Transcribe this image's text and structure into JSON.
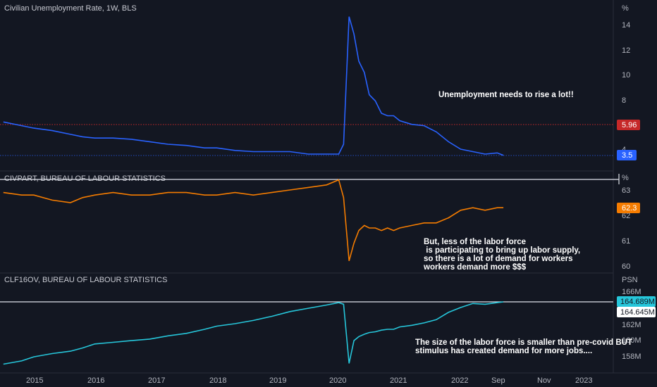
{
  "colors": {
    "background": "#131722",
    "unemployment_line": "#2962ff",
    "civpart_line": "#f57c00",
    "clf_line": "#26c6da",
    "dotted_level": "#c62828",
    "white_level": "#e0e3eb",
    "grid_text": "#b2b5be"
  },
  "chart_data": [
    {
      "type": "line",
      "title": "Civilian Unemployment Rate, 1W, BLS",
      "unit_label": "%",
      "y_ticks": [
        "14",
        "12",
        "10",
        "8",
        "4"
      ],
      "ylim": [
        3,
        15
      ],
      "series": [
        {
          "values_note": "",
          "x": [
            2014.5,
            2014.8,
            2015.0,
            2015.3,
            2015.6,
            2015.8,
            2016.0,
            2016.3,
            2016.6,
            2016.9,
            2017.2,
            2017.5,
            2017.8,
            2018.0,
            2018.3,
            2018.6,
            2018.9,
            2019.2,
            2019.5,
            2019.8,
            2020.0,
            2020.08,
            2020.17,
            2020.25,
            2020.33,
            2020.42,
            2020.5,
            2020.6,
            2020.7,
            2020.8,
            2020.9,
            2021.0,
            2021.2,
            2021.4,
            2021.6,
            2021.8,
            2022.0,
            2022.2,
            2022.4,
            2022.6,
            2022.7
          ],
          "values": [
            6.2,
            5.9,
            5.7,
            5.5,
            5.2,
            5.0,
            4.9,
            4.9,
            4.8,
            4.6,
            4.4,
            4.3,
            4.1,
            4.1,
            3.9,
            3.8,
            3.8,
            3.8,
            3.6,
            3.6,
            3.6,
            4.4,
            14.7,
            13.3,
            11.1,
            10.2,
            8.4,
            7.9,
            6.9,
            6.7,
            6.7,
            6.3,
            6.0,
            5.9,
            5.4,
            4.6,
            4.0,
            3.8,
            3.6,
            3.7,
            3.5
          ]
        }
      ],
      "last_value_badges": [
        "5.96",
        "3.5"
      ],
      "annotation": "Unemployment needs to rise a lot!!"
    },
    {
      "type": "line",
      "title": "CIVPART, BUREAU OF LABOUR STATISTICS",
      "unit_label": "%",
      "y_ticks": [
        "63",
        "62",
        "61",
        "60"
      ],
      "ylim": [
        59.8,
        63.4
      ],
      "series": [
        {
          "x": [
            2014.5,
            2014.8,
            2015.0,
            2015.3,
            2015.6,
            2015.8,
            2016.0,
            2016.3,
            2016.6,
            2016.9,
            2017.2,
            2017.5,
            2017.8,
            2018.0,
            2018.3,
            2018.6,
            2018.9,
            2019.2,
            2019.5,
            2019.8,
            2020.0,
            2020.08,
            2020.17,
            2020.25,
            2020.33,
            2020.42,
            2020.5,
            2020.6,
            2020.7,
            2020.8,
            2020.9,
            2021.0,
            2021.2,
            2021.4,
            2021.6,
            2021.8,
            2022.0,
            2022.2,
            2022.4,
            2022.6,
            2022.7
          ],
          "values": [
            62.9,
            62.8,
            62.8,
            62.6,
            62.5,
            62.7,
            62.8,
            62.9,
            62.8,
            62.8,
            62.9,
            62.9,
            62.8,
            62.8,
            62.9,
            62.8,
            62.9,
            63.0,
            63.1,
            63.2,
            63.4,
            62.7,
            60.2,
            60.9,
            61.4,
            61.6,
            61.5,
            61.5,
            61.4,
            61.5,
            61.4,
            61.5,
            61.6,
            61.7,
            61.7,
            61.9,
            62.2,
            62.3,
            62.2,
            62.3,
            62.3
          ]
        }
      ],
      "last_value_badges": [
        "62.3"
      ],
      "annotation": [
        "But, less of the labor force",
        " is participating to bring up labor supply,",
        "so there is a lot of demand for workers",
        "workers demand more $$$"
      ]
    },
    {
      "type": "line",
      "title": "CLF16OV, BUREAU OF LABOUR STATISTICS",
      "unit_label": "PSN",
      "y_ticks": [
        "166M",
        "162M",
        "160M",
        "158M"
      ],
      "ylim": [
        156.8,
        166.5
      ],
      "series": [
        {
          "x": [
            2014.5,
            2014.8,
            2015.0,
            2015.3,
            2015.6,
            2015.8,
            2016.0,
            2016.3,
            2016.6,
            2016.9,
            2017.2,
            2017.5,
            2017.8,
            2018.0,
            2018.3,
            2018.6,
            2018.9,
            2019.2,
            2019.5,
            2019.8,
            2020.0,
            2020.08,
            2020.17,
            2020.25,
            2020.33,
            2020.42,
            2020.5,
            2020.6,
            2020.7,
            2020.8,
            2020.9,
            2021.0,
            2021.2,
            2021.4,
            2021.6,
            2021.8,
            2022.0,
            2022.2,
            2022.4,
            2022.6,
            2022.7
          ],
          "values": [
            157.0,
            157.4,
            157.9,
            158.3,
            158.6,
            159.0,
            159.5,
            159.7,
            159.9,
            160.1,
            160.5,
            160.8,
            161.3,
            161.7,
            162.0,
            162.4,
            162.9,
            163.5,
            163.9,
            164.3,
            164.6,
            164.4,
            157.1,
            159.9,
            160.4,
            160.7,
            160.9,
            161.0,
            161.2,
            161.3,
            161.3,
            161.6,
            161.8,
            162.1,
            162.5,
            163.4,
            164.0,
            164.5,
            164.4,
            164.6,
            164.7
          ]
        }
      ],
      "last_value_badges": [
        "164.689M",
        "164.645M"
      ],
      "annotation": [
        "The size of the labor force is smaller than pre-covid BUT",
        "stimulus has created demand for more jobs...."
      ]
    }
  ],
  "x_axis": {
    "tick_labels": [
      "2015",
      "2016",
      "2017",
      "2018",
      "2019",
      "2020",
      "2021",
      "2022",
      "Sep",
      "Nov",
      "2023"
    ]
  }
}
